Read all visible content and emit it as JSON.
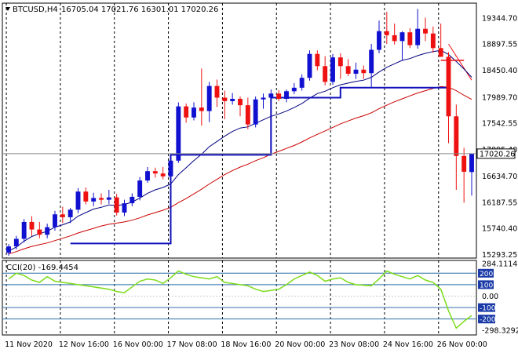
{
  "header": {
    "symbol": "BTCUSD,H4",
    "ohlc": "16705.04 17021.76 16301.01 17020.26",
    "menu_icon": "triangle-down-icon"
  },
  "indicator": {
    "label": "CCI(20) -169.4454"
  },
  "price_axis": {
    "labels": [
      "19344.70",
      "18897.55",
      "18450.40",
      "17989.70",
      "17542.55",
      "17095.40",
      "16634.70",
      "16187.55",
      "15740.40",
      "15293.25"
    ],
    "current_price": "17020.26"
  },
  "cci_axis": {
    "labels": [
      "284.1114",
      "200",
      "100",
      "0.00",
      "-100",
      "-200",
      "-298.3292"
    ]
  },
  "time_axis": {
    "labels": [
      "11 Nov 2020",
      "12 Nov 16:00",
      "16 Nov 00:00",
      "17 Nov 08:00",
      "18 Nov 16:00",
      "20 Nov 00:00",
      "23 Nov 08:00",
      "24 Nov 16:00",
      "26 Nov 00:00"
    ]
  },
  "colors": {
    "bull": "#1010d0",
    "bear": "#ee1111",
    "ma_fast": "#000080",
    "ma_slow": "#cc0000",
    "stop_line": "#1010bb",
    "cci_line": "#7cdc1a",
    "cci_level_line": "#2f6fa8",
    "cci_box": "#1a3aa8"
  },
  "chart_data": {
    "type": "candlestick",
    "symbol": "BTCUSD",
    "timeframe": "H4",
    "y_range": [
      15230,
      19600
    ],
    "current_price": 17020.26,
    "candles": [
      {
        "o": 15320,
        "h": 15470,
        "l": 15270,
        "c": 15430
      },
      {
        "o": 15430,
        "h": 15610,
        "l": 15380,
        "c": 15560
      },
      {
        "o": 15560,
        "h": 15900,
        "l": 15500,
        "c": 15850
      },
      {
        "o": 15850,
        "h": 15950,
        "l": 15610,
        "c": 15720
      },
      {
        "o": 15720,
        "h": 15850,
        "l": 15570,
        "c": 15630
      },
      {
        "o": 15630,
        "h": 15820,
        "l": 15570,
        "c": 15760
      },
      {
        "o": 15760,
        "h": 16040,
        "l": 15700,
        "c": 15980
      },
      {
        "o": 15980,
        "h": 16110,
        "l": 15830,
        "c": 15930
      },
      {
        "o": 15930,
        "h": 16090,
        "l": 15830,
        "c": 16060
      },
      {
        "o": 16060,
        "h": 16430,
        "l": 16000,
        "c": 16370
      },
      {
        "o": 16370,
        "h": 16440,
        "l": 16150,
        "c": 16200
      },
      {
        "o": 16200,
        "h": 16350,
        "l": 16120,
        "c": 16260
      },
      {
        "o": 16260,
        "h": 16340,
        "l": 16150,
        "c": 16230
      },
      {
        "o": 16230,
        "h": 16400,
        "l": 16160,
        "c": 16270
      },
      {
        "o": 16270,
        "h": 16330,
        "l": 15960,
        "c": 16010
      },
      {
        "o": 16010,
        "h": 16230,
        "l": 15950,
        "c": 16170
      },
      {
        "o": 16170,
        "h": 16340,
        "l": 16120,
        "c": 16280
      },
      {
        "o": 16280,
        "h": 16620,
        "l": 16220,
        "c": 16560
      },
      {
        "o": 16560,
        "h": 16790,
        "l": 16520,
        "c": 16720
      },
      {
        "o": 16720,
        "h": 16780,
        "l": 16610,
        "c": 16680
      },
      {
        "o": 16680,
        "h": 16790,
        "l": 16580,
        "c": 16630
      },
      {
        "o": 16630,
        "h": 16980,
        "l": 16590,
        "c": 16900
      },
      {
        "o": 16900,
        "h": 17900,
        "l": 16860,
        "c": 17830
      },
      {
        "o": 17830,
        "h": 17880,
        "l": 17550,
        "c": 17640
      },
      {
        "o": 17640,
        "h": 17900,
        "l": 17590,
        "c": 17810
      },
      {
        "o": 17810,
        "h": 18480,
        "l": 17500,
        "c": 17750
      },
      {
        "o": 17750,
        "h": 18250,
        "l": 17560,
        "c": 18180
      },
      {
        "o": 18180,
        "h": 18290,
        "l": 17820,
        "c": 17980
      },
      {
        "o": 17980,
        "h": 18100,
        "l": 17610,
        "c": 17920
      },
      {
        "o": 17920,
        "h": 18060,
        "l": 17860,
        "c": 17960
      },
      {
        "o": 17960,
        "h": 18000,
        "l": 17660,
        "c": 17850
      },
      {
        "o": 17850,
        "h": 17980,
        "l": 17440,
        "c": 17520
      },
      {
        "o": 17520,
        "h": 18000,
        "l": 17470,
        "c": 17950
      },
      {
        "o": 17950,
        "h": 18050,
        "l": 17790,
        "c": 17980
      },
      {
        "o": 17980,
        "h": 18120,
        "l": 17950,
        "c": 18050
      },
      {
        "o": 18050,
        "h": 18110,
        "l": 17920,
        "c": 17960
      },
      {
        "o": 17960,
        "h": 18120,
        "l": 17900,
        "c": 18090
      },
      {
        "o": 18090,
        "h": 18230,
        "l": 18040,
        "c": 18150
      },
      {
        "o": 18150,
        "h": 18380,
        "l": 18100,
        "c": 18320
      },
      {
        "o": 18320,
        "h": 18790,
        "l": 18270,
        "c": 18730
      },
      {
        "o": 18730,
        "h": 18790,
        "l": 18450,
        "c": 18520
      },
      {
        "o": 18520,
        "h": 18690,
        "l": 18190,
        "c": 18250
      },
      {
        "o": 18250,
        "h": 18730,
        "l": 18200,
        "c": 18670
      },
      {
        "o": 18670,
        "h": 18740,
        "l": 18300,
        "c": 18520
      },
      {
        "o": 18520,
        "h": 18640,
        "l": 18350,
        "c": 18390
      },
      {
        "o": 18390,
        "h": 18580,
        "l": 18300,
        "c": 18460
      },
      {
        "o": 18460,
        "h": 18530,
        "l": 18300,
        "c": 18400
      },
      {
        "o": 18400,
        "h": 18900,
        "l": 18150,
        "c": 18800
      },
      {
        "o": 18800,
        "h": 19300,
        "l": 18740,
        "c": 19120
      },
      {
        "o": 19120,
        "h": 19450,
        "l": 18900,
        "c": 19050
      },
      {
        "o": 19050,
        "h": 19250,
        "l": 18890,
        "c": 18950
      },
      {
        "o": 18950,
        "h": 19120,
        "l": 18620,
        "c": 19100
      },
      {
        "o": 19100,
        "h": 19170,
        "l": 18830,
        "c": 18880
      },
      {
        "o": 18880,
        "h": 19500,
        "l": 18820,
        "c": 19160
      },
      {
        "o": 19160,
        "h": 19350,
        "l": 18950,
        "c": 19080
      },
      {
        "o": 19080,
        "h": 19200,
        "l": 18750,
        "c": 18830
      },
      {
        "o": 18830,
        "h": 19250,
        "l": 18700,
        "c": 18680
      },
      {
        "o": 18680,
        "h": 18760,
        "l": 17200,
        "c": 17660
      },
      {
        "o": 17660,
        "h": 17860,
        "l": 16400,
        "c": 16980
      },
      {
        "o": 16980,
        "h": 17120,
        "l": 16180,
        "c": 16710
      },
      {
        "o": 16705.04,
        "h": 17021.76,
        "l": 16301.01,
        "c": 17020.26
      }
    ],
    "ma_fast": [
      15350,
      15420,
      15520,
      15600,
      15650,
      15690,
      15760,
      15800,
      15850,
      15950,
      16010,
      16070,
      16100,
      16140,
      16130,
      16150,
      16190,
      16260,
      16340,
      16400,
      16440,
      16500,
      16660,
      16780,
      16900,
      17010,
      17140,
      17230,
      17320,
      17400,
      17460,
      17480,
      17540,
      17600,
      17660,
      17700,
      17750,
      17810,
      17880,
      17970,
      18050,
      18090,
      18150,
      18200,
      18230,
      18260,
      18280,
      18330,
      18420,
      18500,
      18560,
      18620,
      18650,
      18700,
      18740,
      18770,
      18790,
      18720,
      18600,
      18470,
      18330
    ],
    "ma_slow": [
      15300,
      15340,
      15390,
      15430,
      15460,
      15490,
      15530,
      15570,
      15610,
      15660,
      15700,
      15740,
      15780,
      15810,
      15830,
      15850,
      15880,
      15920,
      15970,
      16010,
      16050,
      16100,
      16180,
      16250,
      16330,
      16410,
      16500,
      16580,
      16660,
      16730,
      16790,
      16840,
      16900,
      16950,
      17010,
      17060,
      17110,
      17160,
      17220,
      17290,
      17350,
      17410,
      17470,
      17530,
      17580,
      17630,
      17670,
      17720,
      17790,
      17850,
      17910,
      17960,
      18010,
      18060,
      18100,
      18140,
      18170,
      18160,
      18100,
      18020,
      17950
    ],
    "stop_line": [
      [
        8,
        15480
      ],
      [
        21,
        15480
      ],
      [
        21,
        17000
      ],
      [
        34,
        17000
      ],
      [
        34,
        17980
      ],
      [
        43,
        17980
      ],
      [
        43,
        18150
      ],
      [
        57,
        18150
      ]
    ],
    "ma_red_tail": [
      [
        57,
        18900
      ],
      [
        60,
        18280
      ]
    ],
    "cci": [
      150,
      200,
      180,
      140,
      120,
      170,
      130,
      120,
      110,
      100,
      90,
      80,
      70,
      60,
      40,
      30,
      80,
      130,
      150,
      140,
      110,
      160,
      220,
      190,
      170,
      160,
      150,
      170,
      120,
      110,
      100,
      90,
      60,
      40,
      50,
      60,
      100,
      150,
      180,
      210,
      180,
      130,
      150,
      160,
      120,
      100,
      95,
      90,
      150,
      220,
      190,
      170,
      150,
      180,
      140,
      120,
      60,
      -130,
      -280,
      -220,
      -169.4454
    ]
  }
}
